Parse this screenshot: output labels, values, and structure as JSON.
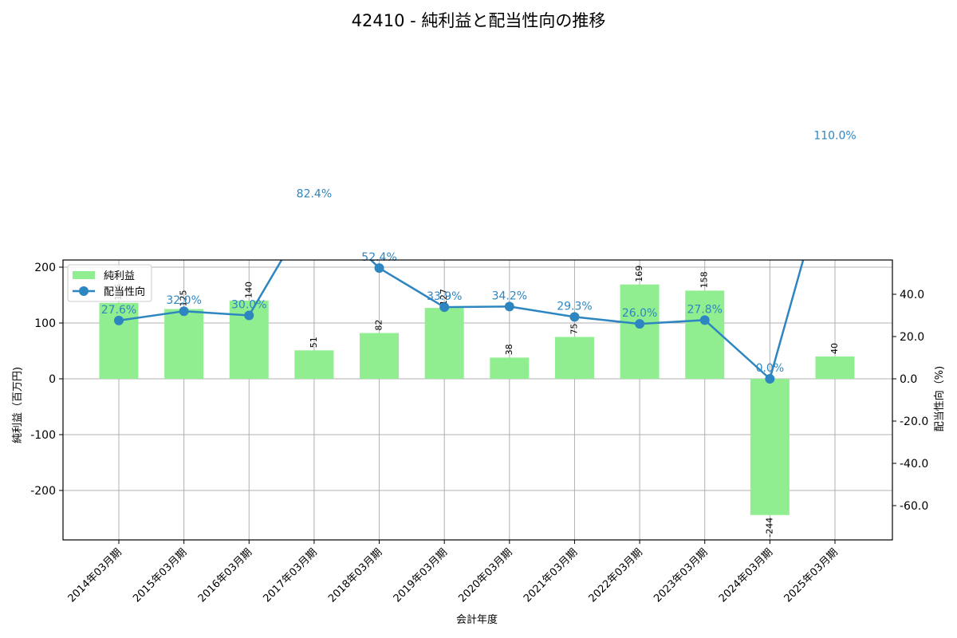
{
  "chart_data": {
    "type": "bar+line",
    "title": "42410 - 純利益と配当性向の推移",
    "xlabel": "会計年度",
    "ylabel_left": "純利益（百万円)",
    "ylabel_right": "配当性向（%)",
    "categories": [
      "2014年03月期",
      "2015年03月期",
      "2016年03月期",
      "2017年03月期",
      "2018年03月期",
      "2019年03月期",
      "2020年03月期",
      "2021年03月期",
      "2022年03月期",
      "2023年03月期",
      "2024年03月期",
      "2025年03月期"
    ],
    "series": [
      {
        "name": "純利益",
        "type": "bar",
        "axis": "left",
        "color": "#90ee90",
        "values": [
          136,
          125,
          140,
          51,
          82,
          127,
          38,
          75,
          169,
          158,
          -244,
          40
        ]
      },
      {
        "name": "配当性向",
        "type": "line",
        "axis": "right",
        "color": "#2e86c1",
        "values": [
          27.6,
          32.0,
          30.0,
          82.4,
          52.4,
          33.9,
          34.2,
          29.3,
          26.0,
          27.8,
          0.0,
          110.0
        ],
        "labels": [
          "27.6%",
          "32.0%",
          "30.0%",
          "82.4%",
          "52.4%",
          "33.9%",
          "34.2%",
          "29.3%",
          "26.0%",
          "27.8%",
          "0.0%",
          "110.0%"
        ]
      }
    ],
    "ylim_left": [
      -290,
      210
    ],
    "ylim_right": [
      -76,
      56
    ],
    "yticks_left": [
      -200,
      -100,
      0,
      100,
      200
    ],
    "yticks_right": [
      "-60.0",
      "-40.0",
      "-20.0",
      "0.0",
      "20.0",
      "40.0"
    ],
    "grid": true,
    "legend_position": "upper left"
  }
}
